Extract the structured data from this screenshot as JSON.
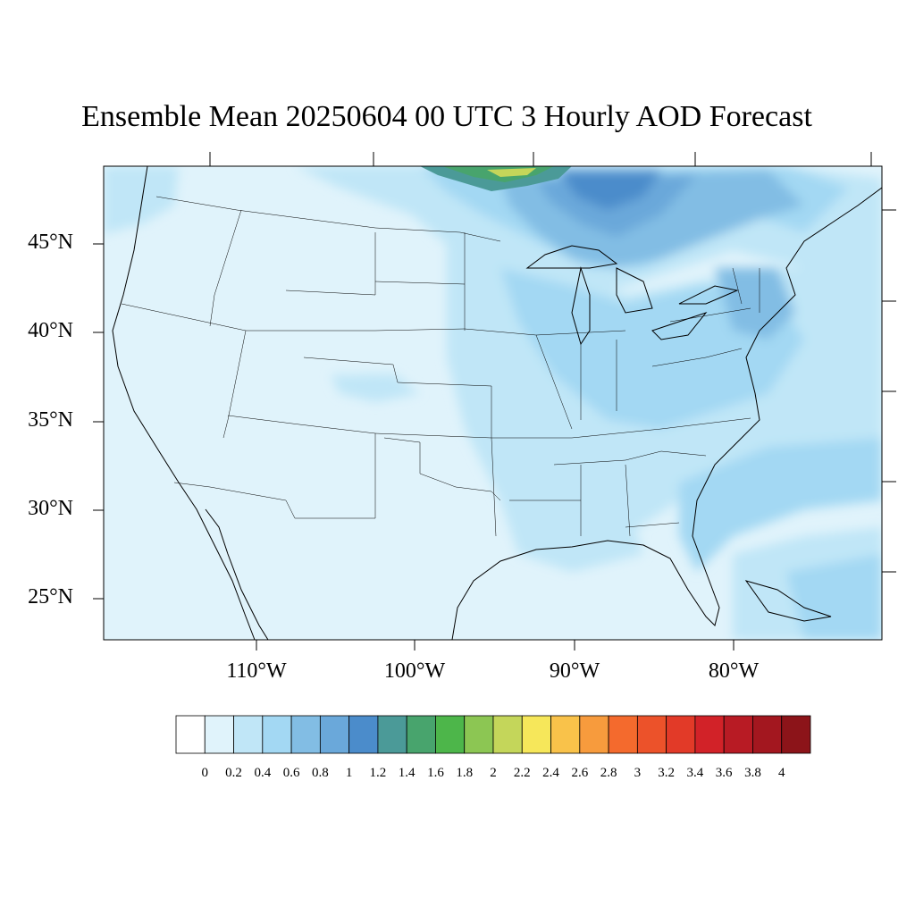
{
  "title": "Ensemble Mean 20250604 00 UTC 3 Hourly AOD Forecast",
  "latitude_labels": [
    "45°N",
    "40°N",
    "35°N",
    "30°N",
    "25°N"
  ],
  "longitude_labels": [
    "110°W",
    "100°W",
    "90°W",
    "80°W"
  ],
  "colorbar": {
    "labels": [
      "0",
      "0.2",
      "0.4",
      "0.6",
      "0.8",
      "1",
      "1.2",
      "1.4",
      "1.6",
      "1.8",
      "2",
      "2.2",
      "2.4",
      "2.6",
      "2.8",
      "3",
      "3.2",
      "3.4",
      "3.6",
      "3.8",
      "4"
    ],
    "colors": [
      "#ffffff",
      "#e0f3fb",
      "#c0e6f7",
      "#a3d8f3",
      "#82bde4",
      "#6aa8da",
      "#4b8ccb",
      "#4b9a98",
      "#48a46d",
      "#4db64a",
      "#8cc653",
      "#c4d65a",
      "#f6e75a",
      "#f9c24a",
      "#f79b3d",
      "#f46a2d",
      "#ec522a",
      "#e23a28",
      "#d22228",
      "#b81b24",
      "#a3171f",
      "#8c1419"
    ]
  },
  "map_fill": {
    "background": "#e0f3fb",
    "light_blue": "#c0e6f7",
    "mid_blue": "#a3d8f3",
    "blue": "#82bde4",
    "dark_blue": "#6aa8da",
    "deep_blue": "#4b8ccb",
    "teal": "#4b9a98",
    "green": "#48a46d",
    "yellow_green": "#c4d65a"
  }
}
